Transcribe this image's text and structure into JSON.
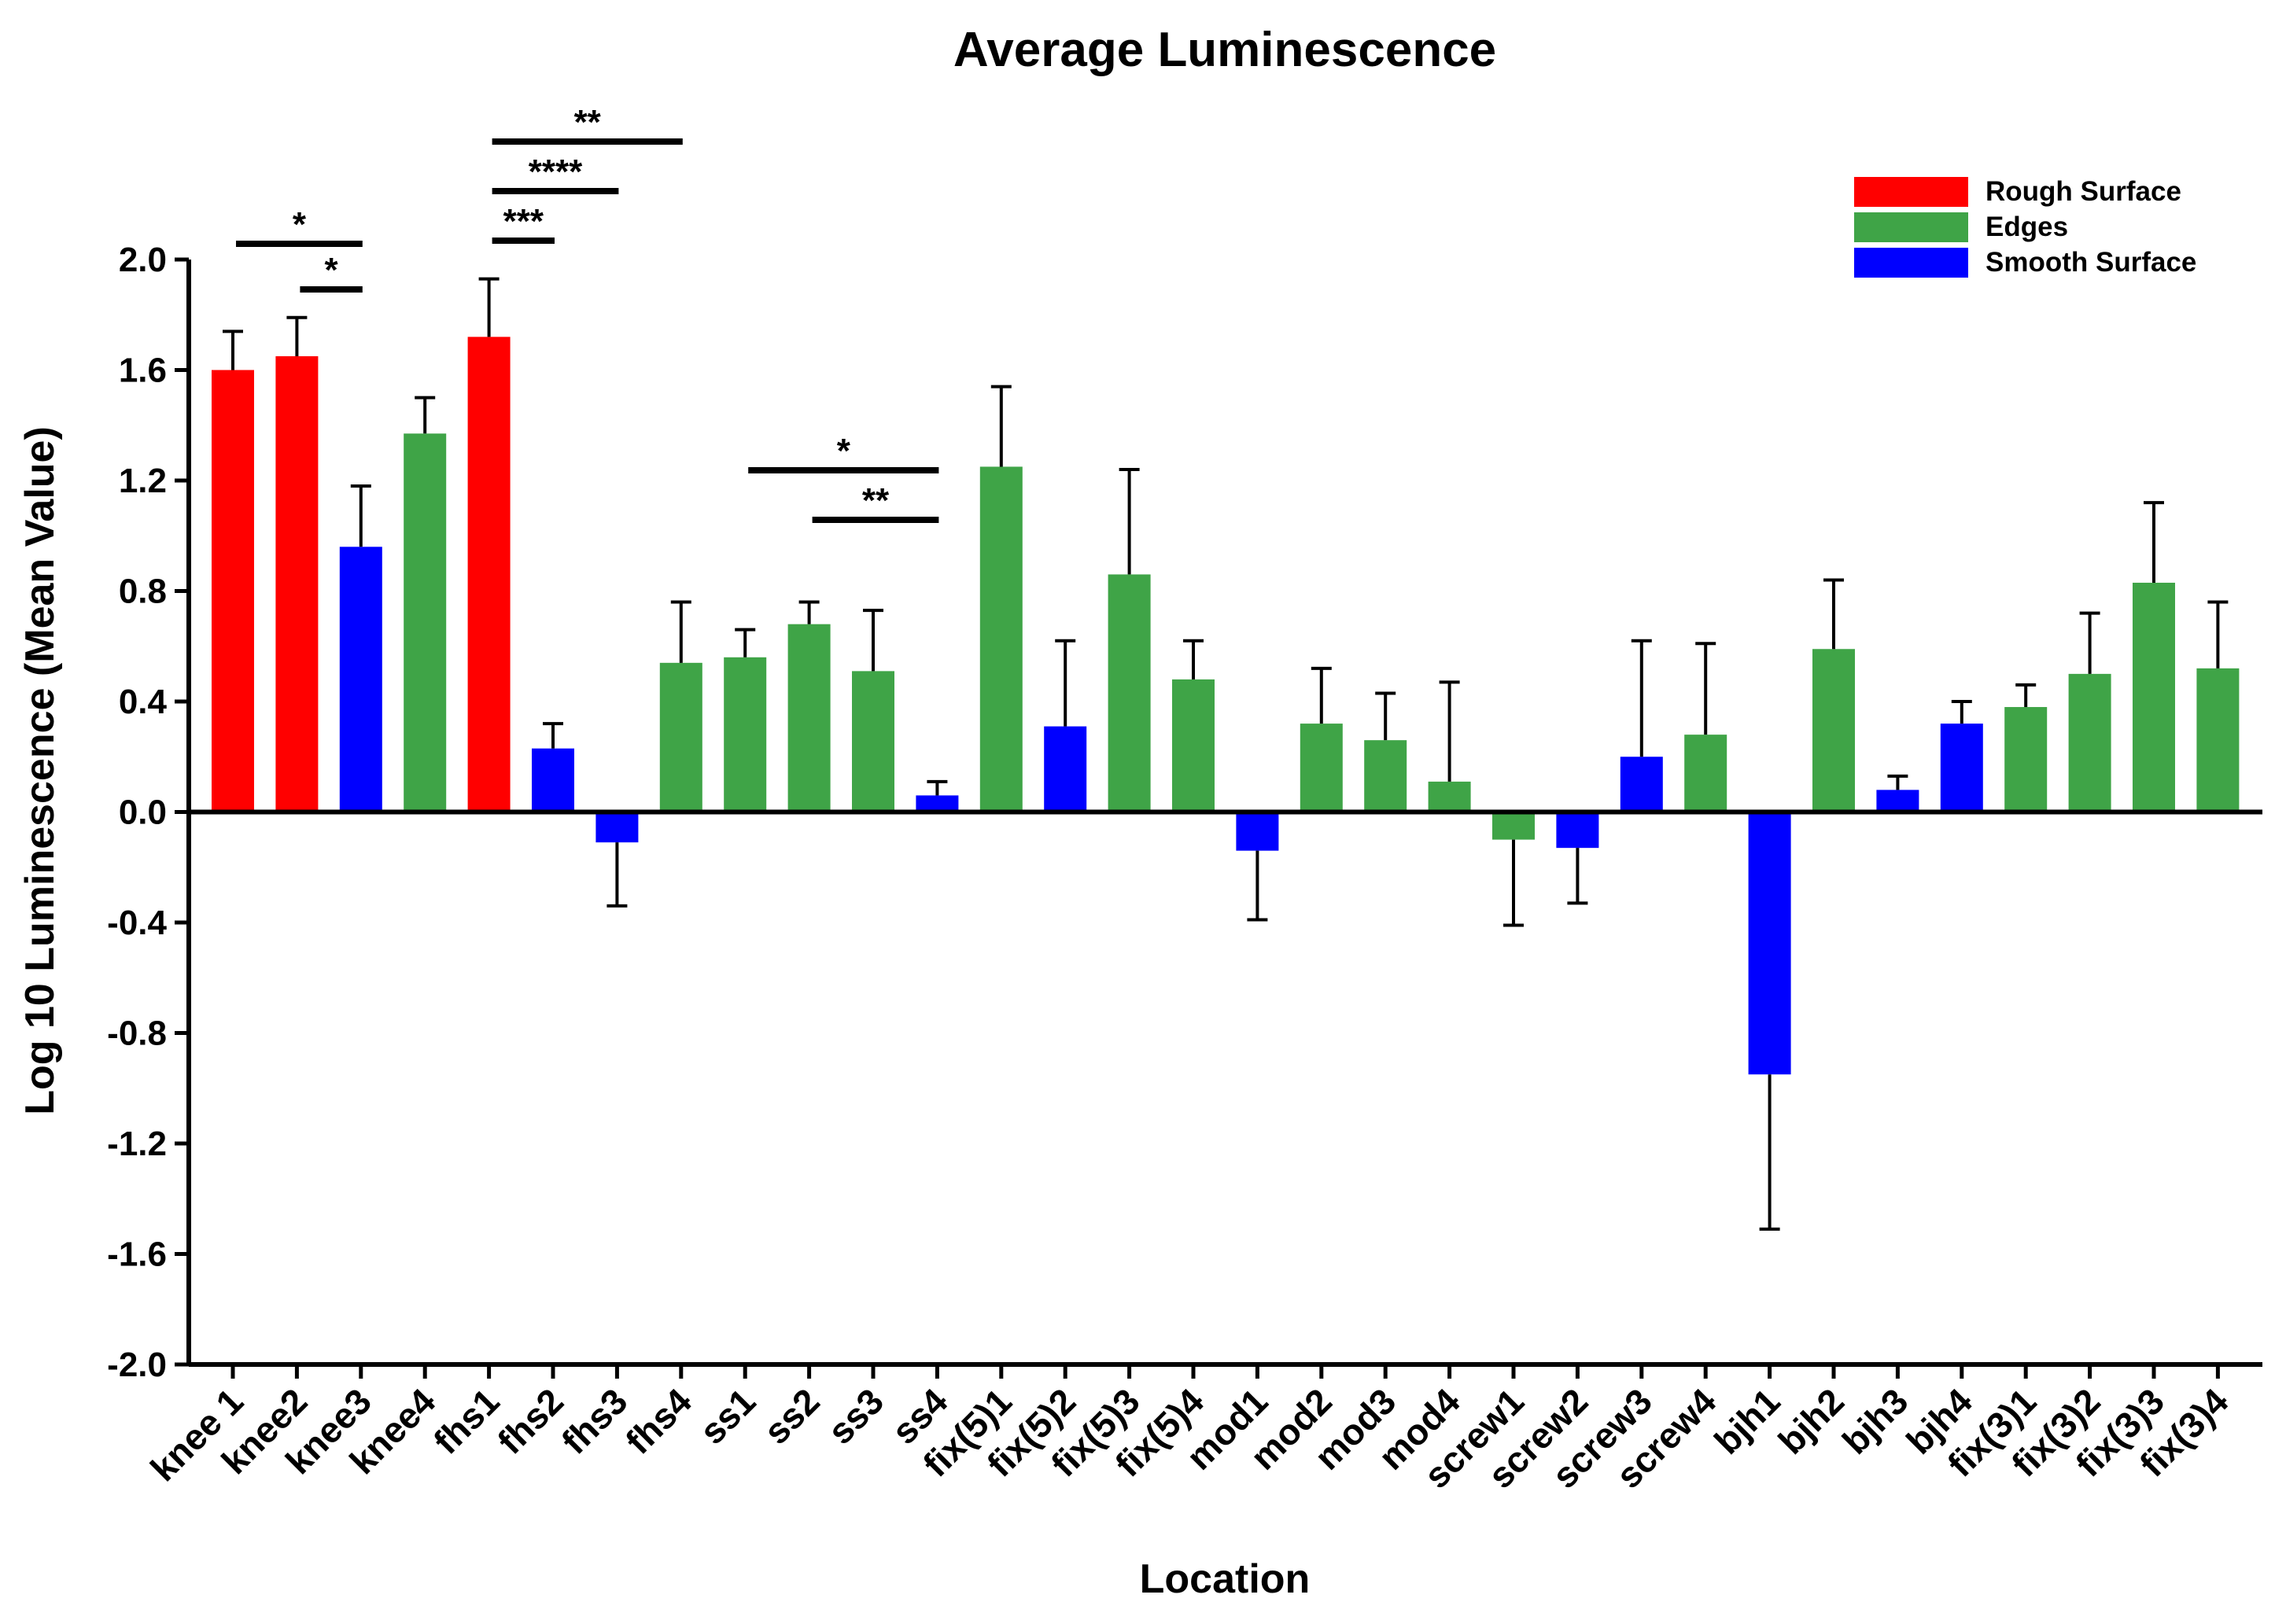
{
  "chart_data": {
    "type": "bar",
    "title": "Average Luminescence",
    "xlabel": "Location",
    "ylabel": "Log 10 Luminescence (Mean Value)",
    "ylim": [
      -2.0,
      2.0
    ],
    "yticks": [
      2.0,
      1.6,
      1.2,
      0.8,
      0.4,
      0.0,
      -0.4,
      -0.8,
      -1.2,
      -1.6,
      -2.0
    ],
    "ytick_labels": [
      "2.0",
      "1.6",
      "1.2",
      "0.8",
      "0.4",
      "0.0",
      "-0.4",
      "-0.8",
      "-1.2",
      "-1.6",
      "-2.0"
    ],
    "grid": false,
    "legend_position": "top-right",
    "legend": [
      {
        "key": "rough",
        "label": "Rough Surface",
        "color": "#ff0000"
      },
      {
        "key": "edges",
        "label": "Edges",
        "color": "#3fa447"
      },
      {
        "key": "smooth",
        "label": "Smooth Surface",
        "color": "#0000ff"
      }
    ],
    "categories": [
      "knee 1",
      "knee2",
      "knee3",
      "knee4",
      "fhs1",
      "fhs2",
      "fhs3",
      "fhs4",
      "ss1",
      "ss2",
      "ss3",
      "ss4",
      "fix(5)1",
      "fix(5)2",
      "fix(5)3",
      "fix(5)4",
      "mod1",
      "mod2",
      "mod3",
      "mod4",
      "screw1",
      "screw2",
      "screw3",
      "screw4",
      "bjh1",
      "bjh2",
      "bjh3",
      "bjh4",
      "fix(3)1",
      "fix(3)2",
      "fix(3)3",
      "fix(3)4"
    ],
    "values": [
      1.6,
      1.65,
      0.96,
      1.37,
      1.72,
      0.23,
      -0.11,
      0.54,
      0.56,
      0.68,
      0.51,
      0.06,
      1.25,
      0.31,
      0.86,
      0.48,
      -0.14,
      0.32,
      0.26,
      0.11,
      -0.1,
      -0.13,
      0.2,
      0.28,
      -0.95,
      0.59,
      0.08,
      0.32,
      0.38,
      0.5,
      0.83,
      0.52
    ],
    "error_tips": [
      1.74,
      1.79,
      1.18,
      1.5,
      1.93,
      0.32,
      -0.34,
      0.76,
      0.66,
      0.76,
      0.73,
      0.11,
      1.54,
      0.62,
      1.24,
      0.62,
      -0.39,
      0.52,
      0.43,
      0.47,
      -0.41,
      -0.33,
      0.62,
      0.61,
      -1.51,
      0.84,
      0.13,
      0.4,
      0.46,
      0.72,
      1.12,
      0.76
    ],
    "groups": [
      "rough",
      "rough",
      "smooth",
      "edges",
      "rough",
      "smooth",
      "smooth",
      "edges",
      "edges",
      "edges",
      "edges",
      "smooth",
      "edges",
      "smooth",
      "edges",
      "edges",
      "smooth",
      "edges",
      "edges",
      "edges",
      "edges",
      "smooth",
      "smooth",
      "edges",
      "smooth",
      "edges",
      "smooth",
      "smooth",
      "edges",
      "edges",
      "edges",
      "edges"
    ],
    "significance": [
      {
        "from": "knee 1",
        "to": "knee3",
        "label": "*"
      },
      {
        "from": "knee2",
        "to": "knee3",
        "label": "*"
      },
      {
        "from": "fhs1",
        "to": "fhs4",
        "label": "**"
      },
      {
        "from": "fhs1",
        "to": "fhs3",
        "label": "****"
      },
      {
        "from": "fhs1",
        "to": "fhs2",
        "label": "***"
      },
      {
        "from": "ss1",
        "to": "ss4",
        "label": "*"
      },
      {
        "from": "ss2",
        "to": "ss4",
        "label": "**"
      }
    ]
  }
}
